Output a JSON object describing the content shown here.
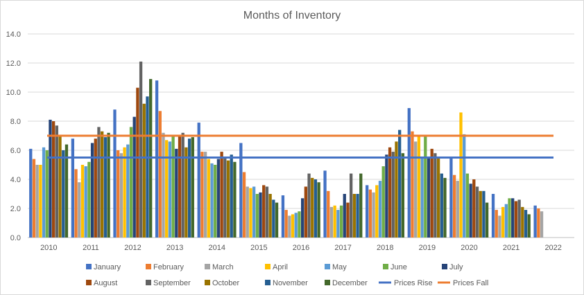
{
  "chart_data": {
    "type": "bar",
    "title": "Months of Inventory",
    "xlabel": "",
    "ylabel": "",
    "ylim": [
      0,
      14
    ],
    "yticks": [
      "0.0",
      "2.0",
      "4.0",
      "6.0",
      "8.0",
      "10.0",
      "12.0",
      "14.0"
    ],
    "grid": true,
    "legend_position": "bottom",
    "categories": [
      "2010",
      "2011",
      "2012",
      "2013",
      "2014",
      "2015",
      "2016",
      "2017",
      "2018",
      "2019",
      "2020",
      "2021",
      "2022"
    ],
    "series": [
      {
        "name": "January",
        "color": "#4472C4",
        "values": [
          6.1,
          6.8,
          8.8,
          10.8,
          7.9,
          6.5,
          2.9,
          4.6,
          3.6,
          8.9,
          5.5,
          3.0,
          2.2
        ]
      },
      {
        "name": "February",
        "color": "#ED7D31",
        "values": [
          5.4,
          4.7,
          6.0,
          8.7,
          5.9,
          4.5,
          1.9,
          3.2,
          3.3,
          7.3,
          4.3,
          1.9,
          2.0
        ]
      },
      {
        "name": "March",
        "color": "#A5A5A5",
        "values": [
          5.0,
          3.8,
          5.8,
          7.2,
          5.9,
          3.5,
          1.5,
          2.1,
          3.1,
          6.6,
          3.9,
          1.5,
          1.8
        ]
      },
      {
        "name": "April",
        "color": "#FFC000",
        "values": [
          5.0,
          5.0,
          6.2,
          6.7,
          5.4,
          3.4,
          1.6,
          2.2,
          3.6,
          7.0,
          8.6,
          2.1,
          null
        ]
      },
      {
        "name": "May",
        "color": "#5B9BD5",
        "values": [
          6.2,
          4.9,
          6.4,
          6.6,
          5.1,
          3.5,
          1.7,
          1.9,
          3.9,
          5.5,
          7.1,
          2.3,
          null
        ]
      },
      {
        "name": "June",
        "color": "#70AD47",
        "values": [
          6.0,
          5.2,
          7.6,
          7.0,
          5.0,
          3.0,
          1.8,
          2.2,
          4.9,
          7.0,
          4.4,
          2.7,
          null
        ]
      },
      {
        "name": "July",
        "color": "#264478",
        "values": [
          8.1,
          6.5,
          8.3,
          6.1,
          5.4,
          3.1,
          2.7,
          3.0,
          5.7,
          5.5,
          3.7,
          2.7,
          null
        ]
      },
      {
        "name": "August",
        "color": "#9E480E",
        "values": [
          8.0,
          6.8,
          10.3,
          7.0,
          5.9,
          3.6,
          3.5,
          2.4,
          6.2,
          6.1,
          4.0,
          2.5,
          null
        ]
      },
      {
        "name": "September",
        "color": "#636363",
        "values": [
          7.7,
          7.6,
          12.1,
          7.2,
          5.5,
          3.5,
          4.4,
          4.4,
          5.9,
          5.8,
          3.5,
          2.6,
          null
        ]
      },
      {
        "name": "October",
        "color": "#997300",
        "values": [
          7.0,
          7.3,
          9.2,
          6.2,
          5.3,
          3.0,
          4.1,
          3.0,
          6.6,
          5.5,
          3.2,
          2.1,
          null
        ]
      },
      {
        "name": "November",
        "color": "#255E91",
        "values": [
          6.0,
          6.9,
          9.7,
          6.8,
          5.7,
          2.6,
          4.0,
          3.0,
          7.4,
          4.4,
          3.2,
          1.9,
          null
        ]
      },
      {
        "name": "December",
        "color": "#43682B",
        "values": [
          6.4,
          7.2,
          10.9,
          6.9,
          5.2,
          2.4,
          3.8,
          4.4,
          5.8,
          4.1,
          2.4,
          1.6,
          null
        ]
      }
    ],
    "reference_lines": [
      {
        "name": "Prices Rise",
        "color": "#4472C4",
        "value": 5.5
      },
      {
        "name": "Prices Fall",
        "color": "#ED7D31",
        "value": 7.0
      }
    ],
    "legend_rows": [
      [
        "January",
        "February",
        "March",
        "April",
        "May",
        "June",
        "July"
      ],
      [
        "August",
        "September",
        "October",
        "November",
        "December",
        "Prices Rise",
        "Prices Fall"
      ]
    ]
  }
}
